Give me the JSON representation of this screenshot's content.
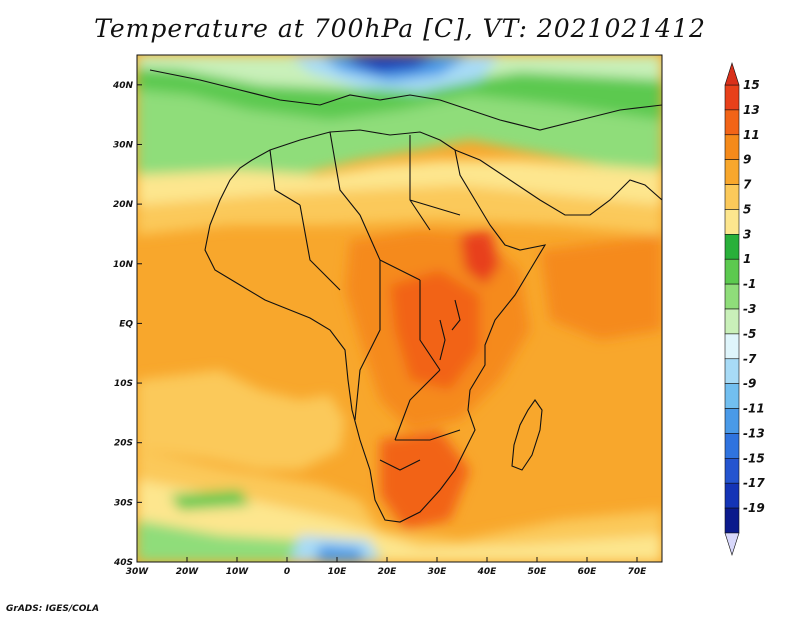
{
  "title": "Temperature at 700hPa [C], VT: 2021021412",
  "footer": "GrADS: IGES/COLA",
  "map": {
    "lon_range": [
      -30,
      75
    ],
    "lat_range": [
      -40,
      45
    ],
    "lon_ticks": [
      {
        "value": -30,
        "label": "30W"
      },
      {
        "value": -20,
        "label": "20W"
      },
      {
        "value": -10,
        "label": "10W"
      },
      {
        "value": 0,
        "label": "0"
      },
      {
        "value": 10,
        "label": "10E"
      },
      {
        "value": 20,
        "label": "20E"
      },
      {
        "value": 30,
        "label": "30E"
      },
      {
        "value": 40,
        "label": "40E"
      },
      {
        "value": 50,
        "label": "50E"
      },
      {
        "value": 60,
        "label": "60E"
      },
      {
        "value": 70,
        "label": "70E"
      }
    ],
    "lat_ticks": [
      {
        "value": 40,
        "label": "40N"
      },
      {
        "value": 30,
        "label": "30N"
      },
      {
        "value": 20,
        "label": "20N"
      },
      {
        "value": 10,
        "label": "10N"
      },
      {
        "value": 0,
        "label": "EQ"
      },
      {
        "value": -10,
        "label": "10S"
      },
      {
        "value": -20,
        "label": "20S"
      },
      {
        "value": -30,
        "label": "30S"
      },
      {
        "value": -40,
        "label": "40S"
      }
    ]
  },
  "colorbar": {
    "labels": [
      "15",
      "13",
      "11",
      "9",
      "7",
      "5",
      "3",
      "1",
      "-1",
      "-3",
      "-5",
      "-7",
      "-9",
      "-11",
      "-13",
      "-15",
      "-17",
      "-19"
    ],
    "colors": [
      "#e8401a",
      "#f26417",
      "#f58a1a",
      "#f8a72c",
      "#fbc95a",
      "#fde68e",
      "#29b03a",
      "#5cc94f",
      "#8fdd7a",
      "#c9f0b9",
      "#dff5fb",
      "#a8dbf6",
      "#72bff0",
      "#4a9ae8",
      "#2f73df",
      "#2454cf",
      "#1434b6",
      "#0b1a8c"
    ],
    "over_color": "#d9301a",
    "under_color": "#d8d8fb"
  }
}
